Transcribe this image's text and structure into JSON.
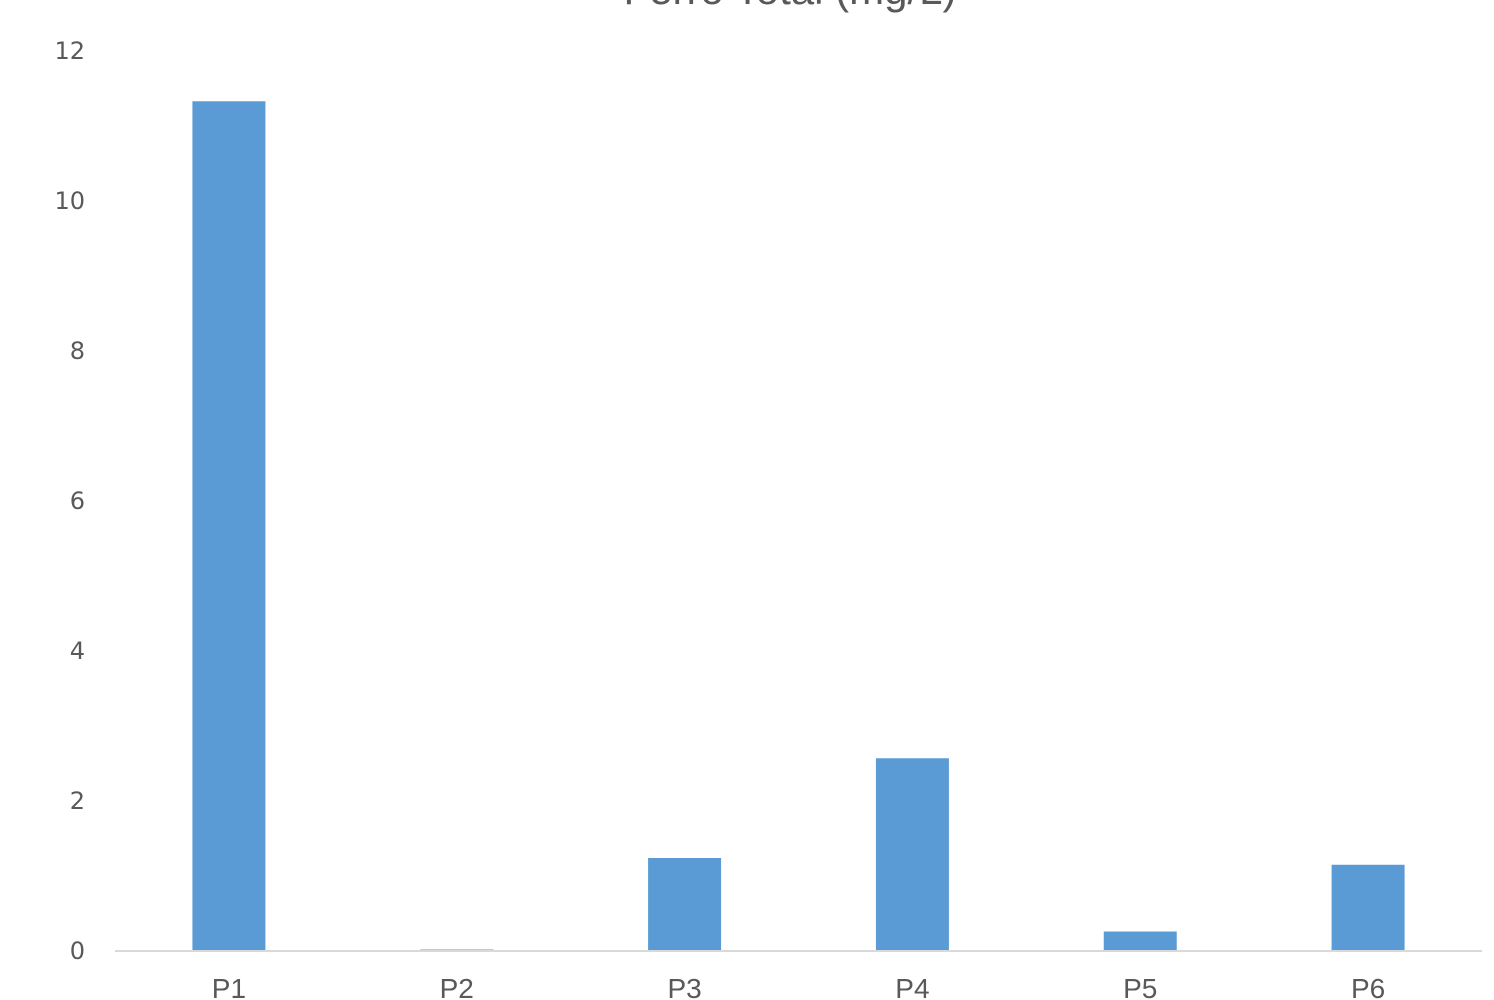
{
  "chart_data": {
    "type": "bar",
    "title": "Ferro Total  (mg/L)",
    "categories": [
      "P1",
      "P2",
      "P3",
      "P4",
      "P5",
      "P6"
    ],
    "values": [
      11.33,
      0.02,
      1.24,
      2.57,
      0.26,
      1.15
    ],
    "ylim": [
      0,
      12
    ],
    "yticks": [
      0,
      2,
      4,
      6,
      8,
      10,
      12
    ],
    "xlabel": "",
    "ylabel": "",
    "grid": false,
    "legend": "none",
    "colors": {
      "bar": "#5b9bd5",
      "axis_line": "#d9d9d9",
      "text": "#595959"
    }
  }
}
